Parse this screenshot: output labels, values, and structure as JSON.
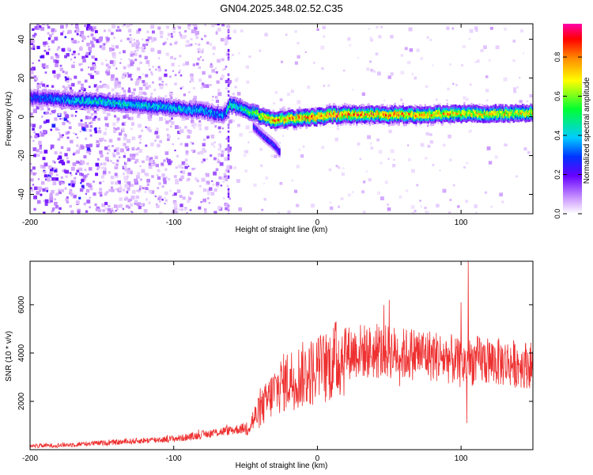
{
  "title": "GN04.2025.348.02.52.C35",
  "chart_data": [
    {
      "type": "heatmap",
      "title": "GN04.2025.348.02.52.C35",
      "xlabel": "Height of straight line (km)",
      "ylabel": "Frequency (Hz)",
      "xlim": [
        -200,
        150
      ],
      "ylim": [
        -50,
        48
      ],
      "xticks": [
        "-200",
        "-100",
        "0",
        "100"
      ],
      "xtick_values": [
        -200,
        -100,
        0,
        100
      ],
      "yticks": [
        "-40",
        "-20",
        "0",
        "20",
        "40"
      ],
      "ytick_values": [
        -40,
        -20,
        0,
        20,
        40
      ],
      "colorbar": {
        "label": "Normalized spectral amplitude",
        "range": [
          0,
          0.97
        ],
        "ticks": [
          "0.0",
          "0.2",
          "0.4",
          "0.6",
          "0.8"
        ],
        "tick_values": [
          0,
          0.2,
          0.4,
          0.6,
          0.8
        ]
      },
      "ridge": {
        "x": [
          -200,
          -160,
          -120,
          -80,
          -65,
          -62,
          -55,
          -45,
          -38,
          -30,
          -20,
          0,
          10,
          50,
          100,
          150
        ],
        "y": [
          10,
          8,
          6,
          3,
          1,
          6,
          5,
          2,
          0,
          -2,
          -1,
          0,
          1,
          1,
          1.5,
          2
        ],
        "amplitude": [
          0.3,
          0.45,
          0.42,
          0.4,
          0.35,
          0.5,
          0.45,
          0.55,
          0.7,
          0.78,
          0.8,
          0.82,
          0.85,
          0.8,
          0.75,
          0.7
        ]
      },
      "branch": {
        "x": [
          -45,
          -38,
          -30,
          -27
        ],
        "y": [
          -5,
          -10,
          -15,
          -18
        ]
      }
    },
    {
      "type": "line",
      "xlabel": "Height of straight line (km)",
      "ylabel": "SNR (10 * v/v)",
      "xlim": [
        -200,
        150
      ],
      "ylim": [
        0,
        7800
      ],
      "xticks": [
        "-200",
        "-100",
        "0",
        "100"
      ],
      "xtick_values": [
        -200,
        -100,
        0,
        100
      ],
      "yticks": [
        "2000",
        "4000",
        "6000"
      ],
      "ytick_values": [
        2000,
        4000,
        6000
      ],
      "series": [
        {
          "name": "SNR",
          "color": "#ee3030",
          "x": [
            -200,
            -180,
            -160,
            -140,
            -120,
            -100,
            -90,
            -80,
            -70,
            -60,
            -50,
            -45,
            -40,
            -35,
            -30,
            -25,
            -20,
            -15,
            -10,
            -5,
            0,
            5,
            10,
            15,
            20,
            25,
            30,
            40,
            50,
            60,
            70,
            80,
            90,
            95,
            100,
            105,
            110,
            120,
            130,
            140,
            150
          ],
          "values": [
            150,
            180,
            250,
            300,
            380,
            450,
            520,
            620,
            720,
            800,
            900,
            1200,
            1600,
            2000,
            2400,
            2700,
            2900,
            3000,
            3100,
            3200,
            3300,
            3400,
            3600,
            3800,
            4000,
            4050,
            4100,
            4000,
            4050,
            3950,
            4000,
            3900,
            3800,
            3700,
            3500,
            3600,
            3700,
            3650,
            3600,
            3550,
            3500
          ]
        }
      ],
      "spikes": [
        {
          "x": 105,
          "y": 7800
        },
        {
          "x": 100,
          "y": 6100
        },
        {
          "x": 50,
          "y": 6200
        },
        {
          "x": 13,
          "y": 5300
        },
        {
          "x": 2,
          "y": 4700
        },
        {
          "x": 104,
          "y": 1100
        }
      ]
    }
  ]
}
